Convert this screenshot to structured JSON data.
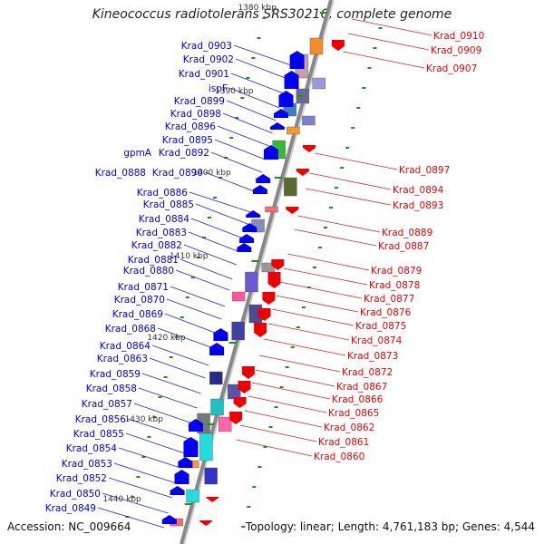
{
  "title": "Kineococcus radiotolerans SRS30216, complete genome",
  "footer": {
    "accession": "Accession: NC_009664",
    "summary": "Topology: linear; Length: 4,761,183 bp; Genes: 4,544"
  },
  "colors": {
    "forward_gene": "#0000ee",
    "reverse_gene": "#ee0000",
    "axis": "#888888",
    "tick": "#119911"
  },
  "kbp_ticks": [
    "1380 kbp",
    "1390 kbp",
    "1400 kbp",
    "1410 kbp",
    "1420 kbp",
    "1430 kbp",
    "1440 kbp"
  ],
  "left_labels": [
    "Krad_0903",
    "Krad_0902",
    "Krad_0901",
    "ispF",
    "Krad_0899",
    "Krad_0898",
    "Krad_0896",
    "Krad_0895",
    "gpmA",
    "Krad_0892",
    "Krad_0888",
    "Krad_0890",
    "Krad_0886",
    "Krad_0885",
    "Krad_0884",
    "Krad_0883",
    "Krad_0882",
    "Krad_0881",
    "Krad_0880",
    "Krad_0871",
    "Krad_0870",
    "Krad_0869",
    "Krad_0868",
    "Krad_0864",
    "Krad_0863",
    "Krad_0859",
    "Krad_0858",
    "Krad_0857",
    "Krad_0856",
    "Krad_0855",
    "Krad_0854",
    "Krad_0853",
    "Krad_0852",
    "Krad_0850",
    "Krad_0849"
  ],
  "right_labels": [
    "Krad_0910",
    "Krad_0909",
    "Krad_0907",
    "Krad_0897",
    "Krad_0894",
    "Krad_0893",
    "Krad_0889",
    "Krad_0887",
    "Krad_0879",
    "Krad_0878",
    "Krad_0877",
    "Krad_0876",
    "Krad_0875",
    "Krad_0874",
    "Krad_0873",
    "Krad_0872",
    "Krad_0867",
    "Krad_0866",
    "Krad_0865",
    "Krad_0862",
    "Krad_0861",
    "Krad_0860"
  ]
}
